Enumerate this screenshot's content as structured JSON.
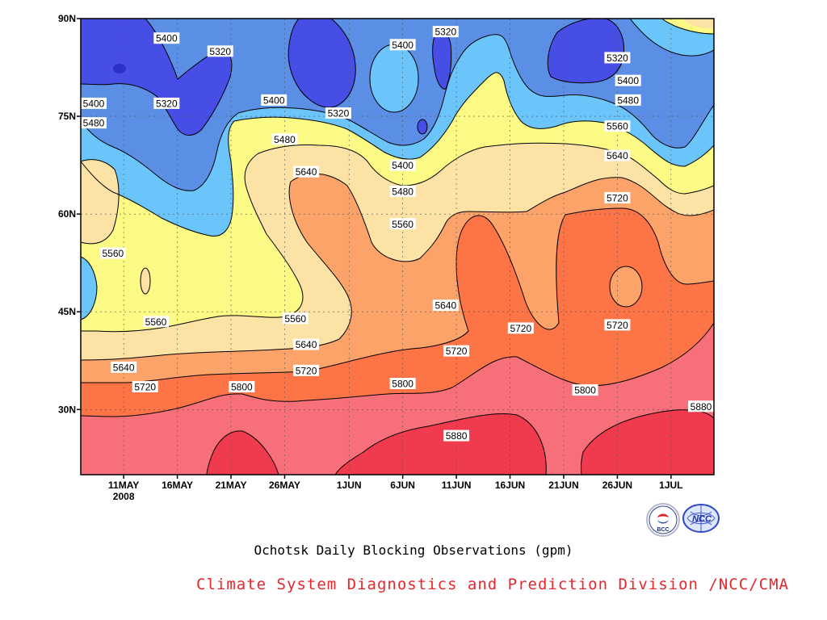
{
  "title": "Ochotsk Daily Blocking Observations (gpm)",
  "credit": "Climate System Diagnostics and Prediction Division /NCC/CMA",
  "logos": [
    {
      "name": "bcc-logo",
      "text": "BCC"
    },
    {
      "name": "ncc-logo",
      "text": "NCC"
    }
  ],
  "chart_data": {
    "type": "heatmap",
    "subtype": "filled-contour",
    "title": "Ochotsk Daily Blocking Observations (gpm)",
    "xlabel": "",
    "ylabel": "",
    "x_range": [
      "2008-05-07",
      "2008-07-05"
    ],
    "y_range": [
      20,
      90
    ],
    "x_ticks": [
      "11MAY",
      "16MAY",
      "21MAY",
      "26MAY",
      "1JUN",
      "6JUN",
      "11JUN",
      "16JUN",
      "21JUN",
      "26JUN",
      "1JUL"
    ],
    "x_tick_year": "2008",
    "y_ticks": [
      "30N",
      "45N",
      "60N",
      "75N",
      "90N"
    ],
    "y_tick_values": [
      30,
      45,
      60,
      75,
      90
    ],
    "grid": true,
    "contour_levels": [
      5320,
      5400,
      5480,
      5560,
      5640,
      5720,
      5800,
      5880
    ],
    "level_colors": {
      "below_5320": "#474ee6",
      "5320_5400": "#5b8fe6",
      "5400_5480": "#6bc5fb",
      "5480_5560": "#fbfa85",
      "5560_5640": "#fde2a6",
      "5640_5720": "#fca36a",
      "5720_5800": "#fd7446",
      "5800_5880": "#f77079",
      "above_5880": "#f03b4e"
    },
    "contour_labels": [
      {
        "text": "5400",
        "date": "2008-05-15",
        "lat": 87
      },
      {
        "text": "5320",
        "date": "2008-05-20",
        "lat": 85
      },
      {
        "text": "5400",
        "date": "2008-05-07",
        "lat": 77
      },
      {
        "text": "5480",
        "date": "2008-05-07",
        "lat": 74
      },
      {
        "text": "5320",
        "date": "2008-05-15",
        "lat": 77
      },
      {
        "text": "5400",
        "date": "2008-05-25",
        "lat": 77.5
      },
      {
        "text": "5320",
        "date": "2008-05-31",
        "lat": 75.5
      },
      {
        "text": "5400",
        "date": "2008-06-06",
        "lat": 86
      },
      {
        "text": "5320",
        "date": "2008-06-10",
        "lat": 88
      },
      {
        "text": "5480",
        "date": "2008-05-26",
        "lat": 71.5
      },
      {
        "text": "5640",
        "date": "2008-05-28",
        "lat": 66.5
      },
      {
        "text": "5400",
        "date": "2008-06-06",
        "lat": 67.5
      },
      {
        "text": "5480",
        "date": "2008-06-06",
        "lat": 63.5
      },
      {
        "text": "5560",
        "date": "2008-06-06",
        "lat": 58.5
      },
      {
        "text": "5560",
        "date": "2008-05-10",
        "lat": 54
      },
      {
        "text": "5560",
        "date": "2008-05-14",
        "lat": 43.5
      },
      {
        "text": "5560",
        "date": "2008-05-27",
        "lat": 44
      },
      {
        "text": "5640",
        "date": "2008-05-28",
        "lat": 40
      },
      {
        "text": "5720",
        "date": "2008-05-28",
        "lat": 36
      },
      {
        "text": "5640",
        "date": "2008-06-10",
        "lat": 46
      },
      {
        "text": "5720",
        "date": "2008-06-11",
        "lat": 39
      },
      {
        "text": "5640",
        "date": "2008-05-11",
        "lat": 36.5
      },
      {
        "text": "5720",
        "date": "2008-05-13",
        "lat": 33.5
      },
      {
        "text": "5800",
        "date": "2008-05-22",
        "lat": 33.5
      },
      {
        "text": "5800",
        "date": "2008-06-06",
        "lat": 34
      },
      {
        "text": "5880",
        "date": "2008-06-11",
        "lat": 26
      },
      {
        "text": "5320",
        "date": "2008-06-26",
        "lat": 84
      },
      {
        "text": "5400",
        "date": "2008-06-27",
        "lat": 80.5
      },
      {
        "text": "5480",
        "date": "2008-06-27",
        "lat": 77.5
      },
      {
        "text": "5560",
        "date": "2008-06-26",
        "lat": 73.5
      },
      {
        "text": "5640",
        "date": "2008-06-26",
        "lat": 69
      },
      {
        "text": "5720",
        "date": "2008-06-26",
        "lat": 62.5
      },
      {
        "text": "5720",
        "date": "2008-06-17",
        "lat": 42.5
      },
      {
        "text": "5720",
        "date": "2008-06-26",
        "lat": 43
      },
      {
        "text": "5800",
        "date": "2008-06-23",
        "lat": 33
      },
      {
        "text": "5880",
        "date": "2008-07-05",
        "lat": 30.5
      }
    ]
  }
}
